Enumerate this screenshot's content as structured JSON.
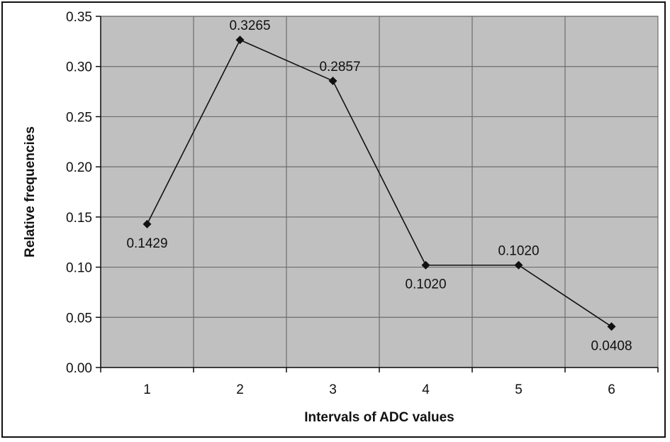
{
  "chart_data": {
    "type": "line",
    "title": "",
    "xlabel": "Intervals of ADC values",
    "ylabel": "Relative frequencies",
    "categories": [
      "1",
      "2",
      "3",
      "4",
      "5",
      "6"
    ],
    "values": [
      0.1429,
      0.3265,
      0.2857,
      0.102,
      0.102,
      0.0408
    ],
    "data_labels": [
      "0.1429",
      "0.3265",
      "0.2857",
      "0.1020",
      "0.1020",
      "0.0408"
    ],
    "ylim": [
      0,
      0.35
    ],
    "yticks": [
      0.0,
      0.05,
      0.1,
      0.15,
      0.2,
      0.25,
      0.3,
      0.35
    ],
    "ytick_labels": [
      "0.00",
      "0.05",
      "0.10",
      "0.15",
      "0.20",
      "0.25",
      "0.30",
      "0.35"
    ],
    "grid": true,
    "legend": "none",
    "marker": "diamond",
    "colors": {
      "plot_background": "#c0c0c0",
      "gridline": "#6e6e6e",
      "line": "#111111",
      "marker": "#111111"
    }
  }
}
